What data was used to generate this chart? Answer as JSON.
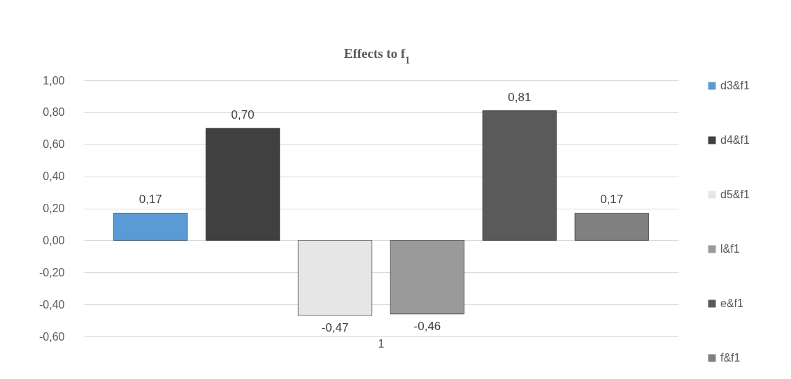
{
  "chart_data": {
    "type": "bar",
    "title": "Effects to f$_{1}$",
    "categories": [
      "1"
    ],
    "series": [
      {
        "name": "d3&f1",
        "color": "#5b9bd5",
        "values": [
          0.17
        ],
        "value_labels": [
          "0,17"
        ]
      },
      {
        "name": "d4&f1",
        "color": "#404040",
        "values": [
          0.7
        ],
        "value_labels": [
          "0,70"
        ]
      },
      {
        "name": "d5&f1",
        "color": "#e6e6e6",
        "values": [
          -0.47
        ],
        "value_labels": [
          "-0,47"
        ]
      },
      {
        "name": "l&f1",
        "color": "#9a9a9a",
        "values": [
          -0.46
        ],
        "value_labels": [
          "-0,46"
        ]
      },
      {
        "name": "e&f1",
        "color": "#5a5a5a",
        "values": [
          0.81
        ],
        "value_labels": [
          "0,81"
        ]
      },
      {
        "name": "f&f1",
        "color": "#808080",
        "values": [
          0.17
        ],
        "value_labels": [
          "0,17"
        ]
      }
    ],
    "ylim": [
      -0.6,
      1.0
    ],
    "yticks": [
      {
        "value": -0.6,
        "label": "-0,60"
      },
      {
        "value": -0.4,
        "label": "-0,40"
      },
      {
        "value": -0.2,
        "label": "-0,20"
      },
      {
        "value": 0,
        "label": "0,00"
      },
      {
        "value": 0.2,
        "label": "0,20"
      },
      {
        "value": 0.4,
        "label": "0,40"
      },
      {
        "value": 0.6,
        "label": "0,60"
      },
      {
        "value": 0.8,
        "label": "0,80"
      },
      {
        "value": 1.0,
        "label": "1,00"
      }
    ],
    "grid": "y",
    "legend": "right"
  }
}
